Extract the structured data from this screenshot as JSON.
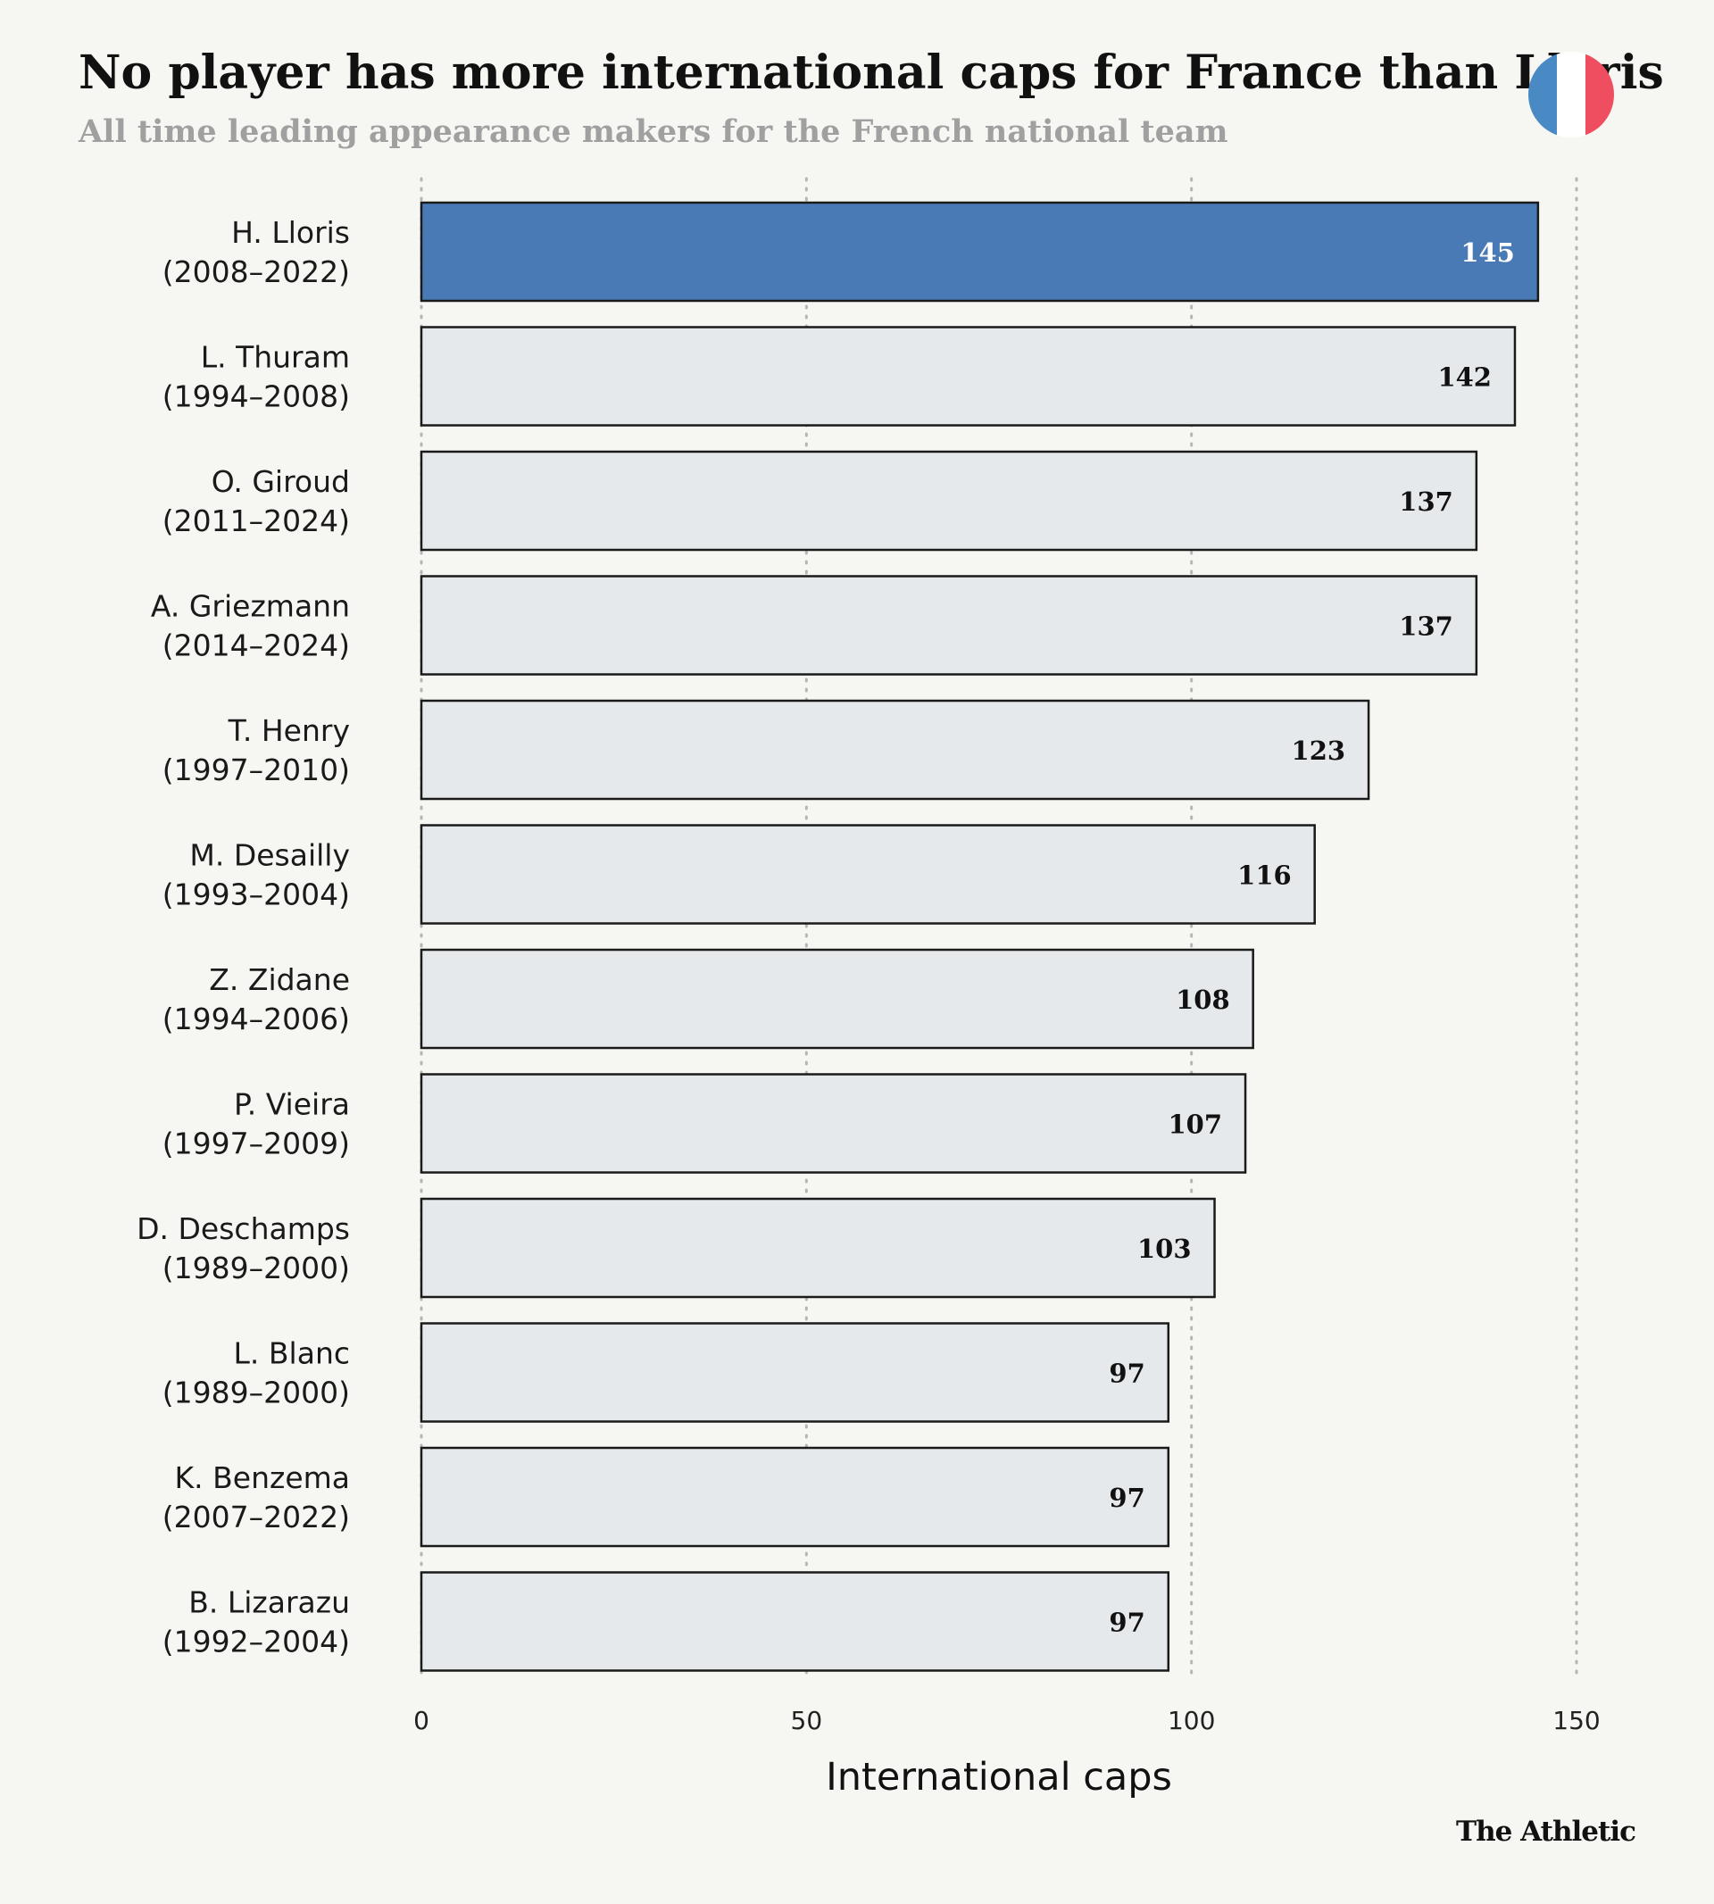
{
  "colors": {
    "background": "#f6f6f2",
    "highlight_bar": "#4a7ab5",
    "default_bar": "#e6e9eb",
    "bar_outline": "#1a1a1a",
    "highlight_value_text": "#ffffff",
    "default_value_text": "#111111",
    "gridline": "#b5b5b5",
    "flag_blue": "#4a8ac4",
    "flag_white": "#ffffff",
    "flag_red": "#ee4e5f"
  },
  "header": {
    "title": "No player has more international caps for France than Lloris",
    "subtitle": "All time leading appearance makers for the French national team",
    "flag_icon": "france-flag-icon"
  },
  "footer": {
    "brand": "The Athletic"
  },
  "chart_data": {
    "type": "bar",
    "orientation": "horizontal",
    "title": "No player has more international caps for France than Lloris",
    "subtitle": "All time leading appearance makers for the French national team",
    "xlabel": "International caps",
    "ylabel": "",
    "xlim": [
      0,
      150
    ],
    "xticks": [
      0,
      50,
      100,
      150
    ],
    "grid": "vertical dotted",
    "highlight": "H. Lloris",
    "categories": [
      {
        "name": "H. Lloris",
        "years": "(2008–2022)"
      },
      {
        "name": "L. Thuram",
        "years": "(1994–2008)"
      },
      {
        "name": "O. Giroud",
        "years": "(2011–2024)"
      },
      {
        "name": "A. Griezmann",
        "years": "(2014–2024)"
      },
      {
        "name": "T. Henry",
        "years": "(1997–2010)"
      },
      {
        "name": "M. Desailly",
        "years": "(1993–2004)"
      },
      {
        "name": "Z. Zidane",
        "years": "(1994–2006)"
      },
      {
        "name": "P. Vieira",
        "years": "(1997–2009)"
      },
      {
        "name": "D. Deschamps",
        "years": "(1989–2000)"
      },
      {
        "name": "L. Blanc",
        "years": "(1989–2000)"
      },
      {
        "name": "K. Benzema",
        "years": "(2007–2022)"
      },
      {
        "name": "B. Lizarazu",
        "years": "(1992–2004)"
      }
    ],
    "values": [
      145,
      142,
      137,
      137,
      123,
      116,
      108,
      107,
      103,
      97,
      97,
      97
    ]
  }
}
